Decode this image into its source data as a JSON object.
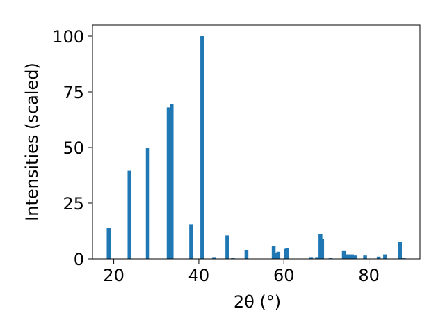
{
  "chart_data": {
    "type": "bar",
    "xlabel": "2θ (°)",
    "ylabel": "Intensities (scaled)",
    "xlim": [
      15,
      92
    ],
    "ylim": [
      0,
      105
    ],
    "x_ticks": [
      20,
      40,
      60,
      80
    ],
    "y_ticks": [
      0,
      25,
      50,
      75,
      100
    ],
    "bar_width": 0.9,
    "color": "#1f77b4",
    "grid": false,
    "legend": "none",
    "x": [
      18.8,
      23.7,
      28.0,
      32.9,
      33.6,
      38.2,
      40.8,
      43.6,
      46.7,
      48.0,
      51.2,
      57.6,
      58.4,
      58.7,
      60.5,
      60.8,
      66.4,
      67.8,
      68.6,
      69.0,
      71.0,
      74.1,
      74.7,
      75.3,
      76.0,
      76.8,
      79.1,
      82.3,
      83.8,
      87.3,
      88.2
    ],
    "values": [
      14.0,
      39.5,
      50.0,
      68.0,
      69.5,
      15.5,
      100.0,
      0.5,
      10.5,
      0.3,
      4.0,
      5.8,
      2.8,
      3.2,
      4.5,
      5.0,
      0.5,
      0.5,
      11.0,
      8.8,
      0.3,
      3.5,
      2.0,
      2.0,
      2.0,
      1.5,
      1.5,
      1.0,
      2.0,
      7.5,
      0.3
    ]
  }
}
